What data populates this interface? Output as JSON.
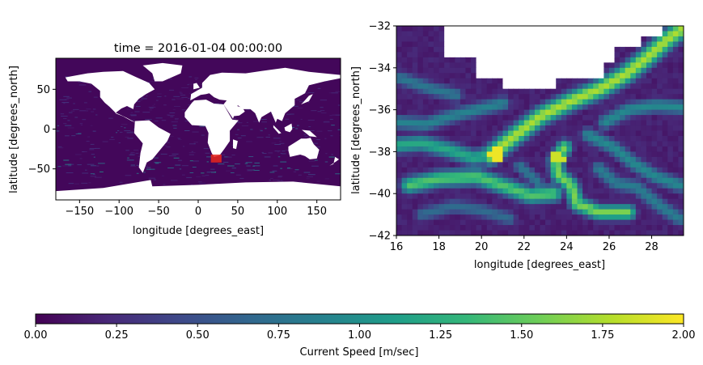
{
  "chart_data": [
    {
      "type": "heatmap",
      "title": "time = 2016-01-04 00:00:00",
      "xlabel": "longitude [degrees_east]",
      "ylabel": "latitude [degrees_north]",
      "xlim": [
        -180,
        180
      ],
      "ylim": [
        -89,
        89
      ],
      "xticks": [
        -150,
        -100,
        -50,
        0,
        50,
        100,
        150
      ],
      "yticks": [
        -50,
        0,
        50
      ],
      "highlight_region": {
        "lon": [
          16,
          29.5
        ],
        "lat": [
          -42,
          -32
        ],
        "color": "#e8261c"
      },
      "notes": "global ocean current speed field; land masked white"
    },
    {
      "type": "heatmap",
      "title": "",
      "xlabel": "longitude [degrees_east]",
      "ylabel": "latitude [degrees_north]",
      "xlim": [
        16,
        29.5
      ],
      "ylim": [
        -42,
        -32
      ],
      "xticks": [
        16,
        18,
        20,
        22,
        24,
        26,
        28
      ],
      "yticks": [
        -42,
        -40,
        -38,
        -36,
        -34,
        -32
      ],
      "notes": "Agulhas region close-up of current speed; land masked white at top"
    }
  ],
  "colorbar": {
    "label": "Current Speed [m/sec]",
    "range": [
      0.0,
      2.0
    ],
    "ticks": [
      "0.00",
      "0.25",
      "0.50",
      "0.75",
      "1.00",
      "1.25",
      "1.50",
      "1.75",
      "2.00"
    ],
    "colormap": "viridis",
    "colors": [
      "#440154",
      "#482878",
      "#3e4989",
      "#31688e",
      "#26828e",
      "#1f9e89",
      "#35b779",
      "#6ece58",
      "#b5de2b",
      "#fde725"
    ]
  }
}
